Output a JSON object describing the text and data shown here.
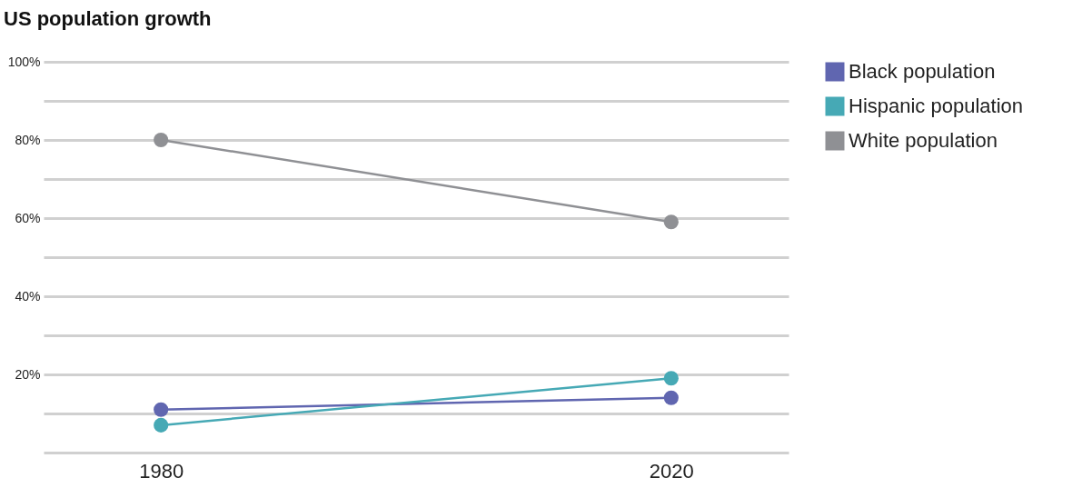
{
  "chart_data": {
    "type": "line",
    "title": "US population growth",
    "categories": [
      "1980",
      "2020"
    ],
    "series": [
      {
        "name": "Black population",
        "color": "#6066b0",
        "values": [
          11,
          14
        ]
      },
      {
        "name": "Hispanic population",
        "color": "#46a9b5",
        "values": [
          7,
          19
        ]
      },
      {
        "name": "White population",
        "color": "#8f9094",
        "values": [
          80,
          59
        ]
      }
    ],
    "ylim": [
      0,
      100
    ],
    "yticks": [
      {
        "value": 0,
        "label": null
      },
      {
        "value": 10,
        "label": null
      },
      {
        "value": 20,
        "label": "20%"
      },
      {
        "value": 30,
        "label": null
      },
      {
        "value": 40,
        "label": "40%"
      },
      {
        "value": 50,
        "label": null
      },
      {
        "value": 60,
        "label": "60%"
      },
      {
        "value": 70,
        "label": null
      },
      {
        "value": 80,
        "label": "80%"
      },
      {
        "value": 90,
        "label": null
      },
      {
        "value": 100,
        "label": "100%"
      }
    ],
    "grid": "y",
    "legend": "top right",
    "marker": "circle",
    "line_style": "solid"
  }
}
